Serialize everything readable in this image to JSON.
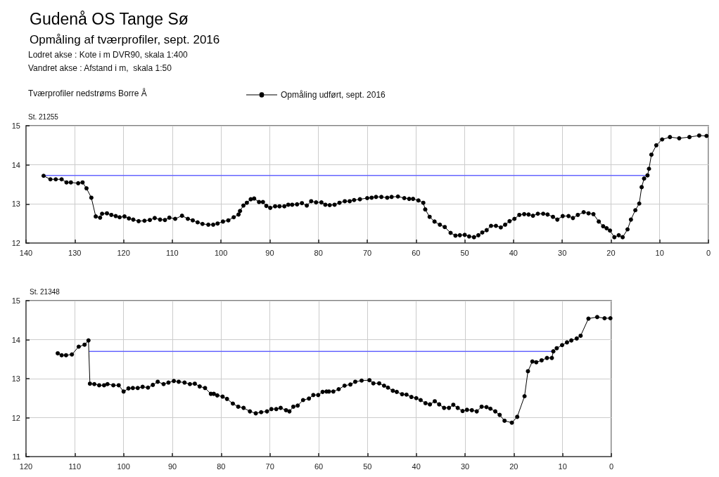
{
  "chart_data": [
    {
      "type": "line",
      "title": "Gudenå OS Tange Sø",
      "subtitle": "Opmåling af tværprofiler, sept. 2016",
      "annotations": [
        "Lodret akse : Kote i m DVR90, skala 1:400",
        "Vandret akse : Afstand i m,  skala 1:50",
        "Tværprofiler nedstrøms Borre Å",
        "St. 21255"
      ],
      "xlim": [
        140,
        0
      ],
      "xticks": [
        140,
        130,
        120,
        110,
        100,
        90,
        80,
        70,
        60,
        50,
        40,
        30,
        20,
        10,
        0
      ],
      "ylim": [
        12,
        15
      ],
      "yticks": [
        12,
        13,
        14,
        15
      ],
      "grid": true,
      "legend": "top",
      "marker": "circle",
      "line_style": "solid",
      "series": [
        {
          "name": "Opmåling udført, sept. 2016",
          "color": "#000000",
          "x": [
            136.4,
            135.0,
            133.9,
            132.7,
            131.7,
            130.8,
            129.3,
            128.4,
            127.6,
            126.6,
            125.7,
            124.8,
            124.4,
            123.4,
            122.5,
            121.6,
            120.8,
            119.8,
            118.9,
            118.0,
            116.9,
            115.7,
            114.6,
            113.6,
            112.5,
            111.5,
            110.6,
            109.4,
            108.0,
            106.8,
            105.8,
            104.8,
            103.8,
            102.6,
            101.6,
            100.7,
            99.6,
            98.5,
            97.4,
            96.4,
            96.1,
            95.4,
            94.7,
            93.9,
            93.2,
            92.2,
            91.4,
            90.7,
            89.9,
            88.9,
            88.0,
            87.0,
            86.2,
            85.4,
            84.4,
            83.4,
            82.4,
            81.5,
            80.5,
            79.4,
            78.6,
            77.7,
            76.7,
            75.7,
            74.6,
            73.6,
            72.7,
            71.5,
            70.0,
            69.1,
            68.2,
            67.1,
            65.9,
            65.0,
            63.7,
            62.4,
            61.4,
            60.6,
            59.5,
            58.5,
            58.1,
            57.2,
            56.2,
            55.1,
            54.1,
            52.9,
            51.9,
            51.0,
            50.0,
            49.1,
            48.1,
            47.2,
            46.4,
            45.5,
            44.6,
            43.6,
            42.6,
            41.7,
            40.8,
            39.8,
            38.8,
            37.8,
            36.9,
            36.0,
            35.0,
            33.9,
            33.0,
            31.9,
            31.0,
            29.9,
            28.7,
            27.8,
            26.8,
            25.6,
            24.6,
            23.6,
            22.5,
            21.6,
            20.9,
            20.2,
            19.3,
            18.4,
            17.6,
            16.6,
            15.9,
            15.0,
            14.2,
            13.7,
            13.2,
            12.5,
            12.2,
            11.7,
            10.7,
            9.5,
            7.9,
            6.0,
            3.9,
            1.9,
            0.4
          ],
          "values": [
            13.72,
            13.63,
            13.63,
            13.63,
            13.55,
            13.55,
            13.53,
            13.55,
            13.4,
            13.16,
            12.68,
            12.65,
            12.75,
            12.76,
            12.72,
            12.69,
            12.66,
            12.68,
            12.63,
            12.6,
            12.56,
            12.57,
            12.59,
            12.64,
            12.6,
            12.59,
            12.65,
            12.62,
            12.7,
            12.62,
            12.58,
            12.53,
            12.49,
            12.47,
            12.47,
            12.5,
            12.55,
            12.58,
            12.66,
            12.73,
            12.82,
            12.96,
            13.03,
            13.12,
            13.14,
            13.05,
            13.05,
            12.95,
            12.9,
            12.94,
            12.94,
            12.94,
            12.98,
            12.98,
            12.99,
            13.02,
            12.96,
            13.07,
            13.04,
            13.04,
            12.98,
            12.97,
            12.98,
            13.03,
            13.07,
            13.07,
            13.1,
            13.12,
            13.15,
            13.16,
            13.18,
            13.18,
            13.16,
            13.18,
            13.19,
            13.15,
            13.13,
            13.13,
            13.09,
            13.03,
            12.86,
            12.67,
            12.55,
            12.47,
            12.41,
            12.26,
            12.19,
            12.2,
            12.21,
            12.17,
            12.15,
            12.2,
            12.27,
            12.33,
            12.44,
            12.44,
            12.4,
            12.47,
            12.56,
            12.62,
            12.72,
            12.74,
            12.73,
            12.7,
            12.75,
            12.75,
            12.73,
            12.67,
            12.6,
            12.69,
            12.69,
            12.64,
            12.72,
            12.79,
            12.76,
            12.74,
            12.55,
            12.43,
            12.38,
            12.32,
            12.15,
            12.2,
            12.15,
            12.35,
            12.6,
            12.84,
            13.01,
            13.43,
            13.65,
            13.73,
            13.9,
            14.26,
            14.5,
            14.65,
            14.71,
            14.68,
            14.71,
            14.75,
            14.74
          ]
        },
        {
          "color": "#6666ff",
          "marker": "none",
          "x": [
            136.4,
            12.5
          ],
          "values": [
            13.73,
            13.73
          ]
        }
      ]
    },
    {
      "type": "line",
      "title": "St. 21348",
      "xlim": [
        120,
        0
      ],
      "xticks": [
        120,
        110,
        100,
        90,
        80,
        70,
        60,
        50,
        40,
        30,
        20,
        10,
        0
      ],
      "ylim": [
        11,
        15
      ],
      "yticks": [
        11,
        12,
        13,
        14,
        15
      ],
      "grid": true,
      "marker": "circle",
      "line_style": "solid",
      "series": [
        {
          "color": "#000000",
          "x": [
            113.5,
            112.7,
            111.8,
            110.6,
            109.2,
            108.0,
            107.2,
            106.9,
            106.0,
            105.0,
            104.0,
            103.3,
            102.1,
            101.0,
            100.0,
            99.0,
            98.1,
            97.1,
            96.1,
            95.0,
            94.0,
            93.0,
            91.8,
            90.8,
            89.7,
            88.7,
            87.5,
            86.4,
            85.4,
            84.4,
            83.3,
            82.1,
            81.5,
            80.8,
            79.7,
            78.8,
            77.6,
            76.5,
            75.4,
            74.1,
            72.9,
            71.8,
            70.6,
            69.7,
            68.7,
            67.8,
            66.7,
            66.0,
            65.2,
            64.3,
            63.2,
            62.0,
            61.1,
            60.1,
            59.2,
            58.4,
            57.9,
            57.0,
            55.9,
            54.7,
            53.5,
            52.5,
            51.2,
            49.6,
            48.8,
            47.6,
            46.6,
            45.8,
            44.8,
            44.0,
            42.9,
            42.0,
            41.0,
            40.0,
            39.1,
            38.1,
            37.2,
            36.2,
            35.3,
            34.3,
            33.3,
            32.4,
            31.5,
            30.5,
            29.6,
            28.6,
            27.6,
            26.6,
            25.6,
            24.8,
            23.8,
            22.9,
            21.9,
            20.4,
            19.3,
            17.8,
            17.1,
            16.2,
            15.4,
            14.3,
            13.2,
            12.2,
            11.9,
            11.2,
            10.1,
            9.1,
            8.2,
            7.1,
            6.3,
            4.7,
            2.9,
            1.4,
            0.2
          ],
          "values": [
            13.65,
            13.6,
            13.6,
            13.62,
            13.82,
            13.87,
            13.98,
            12.87,
            12.86,
            12.83,
            12.83,
            12.86,
            12.83,
            12.83,
            12.67,
            12.75,
            12.76,
            12.76,
            12.79,
            12.77,
            12.84,
            12.92,
            12.86,
            12.9,
            12.94,
            12.92,
            12.9,
            12.86,
            12.87,
            12.8,
            12.76,
            12.61,
            12.61,
            12.57,
            12.54,
            12.48,
            12.36,
            12.28,
            12.25,
            12.16,
            12.11,
            12.14,
            12.16,
            12.22,
            12.22,
            12.25,
            12.19,
            12.16,
            12.28,
            12.31,
            12.45,
            12.49,
            12.58,
            12.58,
            12.66,
            12.67,
            12.67,
            12.67,
            12.73,
            12.82,
            12.85,
            12.92,
            12.95,
            12.96,
            12.88,
            12.88,
            12.82,
            12.77,
            12.69,
            12.66,
            12.6,
            12.59,
            12.53,
            12.5,
            12.45,
            12.37,
            12.34,
            12.42,
            12.34,
            12.25,
            12.25,
            12.33,
            12.25,
            12.17,
            12.2,
            12.19,
            12.16,
            12.28,
            12.27,
            12.23,
            12.16,
            12.07,
            11.92,
            11.87,
            12.02,
            12.55,
            13.19,
            13.44,
            13.42,
            13.47,
            13.53,
            13.53,
            13.7,
            13.78,
            13.86,
            13.93,
            13.98,
            14.03,
            14.1,
            14.54,
            14.58,
            14.55,
            14.55
          ]
        },
        {
          "color": "#6666ff",
          "marker": "none",
          "x": [
            107.0,
            12.0
          ],
          "values": [
            13.7,
            13.7
          ]
        }
      ]
    }
  ]
}
